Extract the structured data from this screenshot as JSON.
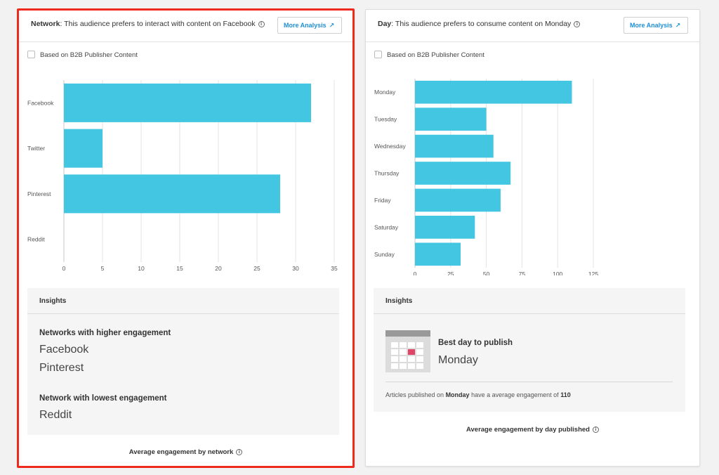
{
  "network_panel": {
    "title_bold": "Network",
    "title_text": ": This audience prefers to interact with content on Facebook",
    "more_button": "More Analysis",
    "checkbox_label": "Based on B2B Publisher Content",
    "insights_header": "Insights",
    "higher_label": "Networks with higher engagement",
    "higher_values": [
      "Facebook",
      "Pinterest"
    ],
    "lowest_label": "Network with lowest engagement",
    "lowest_value": "Reddit",
    "footer": "Average engagement by network"
  },
  "day_panel": {
    "title_bold": "Day",
    "title_text": ": This audience prefers to consume content on Monday",
    "more_button": "More Analysis",
    "checkbox_label": "Based on B2B Publisher Content",
    "insights_header": "Insights",
    "best_label": "Best day to publish",
    "best_value": "Monday",
    "note_prefix": "Articles published on ",
    "note_day": "Monday",
    "note_middle": " have a average engagement of ",
    "note_value": "110",
    "footer": "Average engagement by day published"
  },
  "icons": {
    "info": "info-circle-icon",
    "external": "external-link-icon",
    "calendar": "calendar-icon"
  },
  "colors": {
    "bar": "#42c6e1",
    "accent": "#1e8fd6",
    "highlight": "#ee2a1f",
    "calendar_selected": "#e14566"
  },
  "chart_data": [
    {
      "type": "bar",
      "orientation": "horizontal",
      "categories": [
        "Facebook",
        "Twitter",
        "Pinterest",
        "Reddit"
      ],
      "values": [
        32,
        5,
        28,
        0
      ],
      "xlim": [
        0,
        35
      ],
      "xticks": [
        0,
        5,
        10,
        15,
        20,
        25,
        30,
        35
      ],
      "grid": true
    },
    {
      "type": "bar",
      "orientation": "horizontal",
      "categories": [
        "Monday",
        "Tuesday",
        "Wednesday",
        "Thursday",
        "Friday",
        "Saturday",
        "Sunday"
      ],
      "values": [
        110,
        50,
        55,
        67,
        60,
        42,
        32
      ],
      "xlim": [
        0,
        125
      ],
      "xticks": [
        0,
        25,
        50,
        75,
        100,
        125
      ],
      "grid": true
    }
  ]
}
